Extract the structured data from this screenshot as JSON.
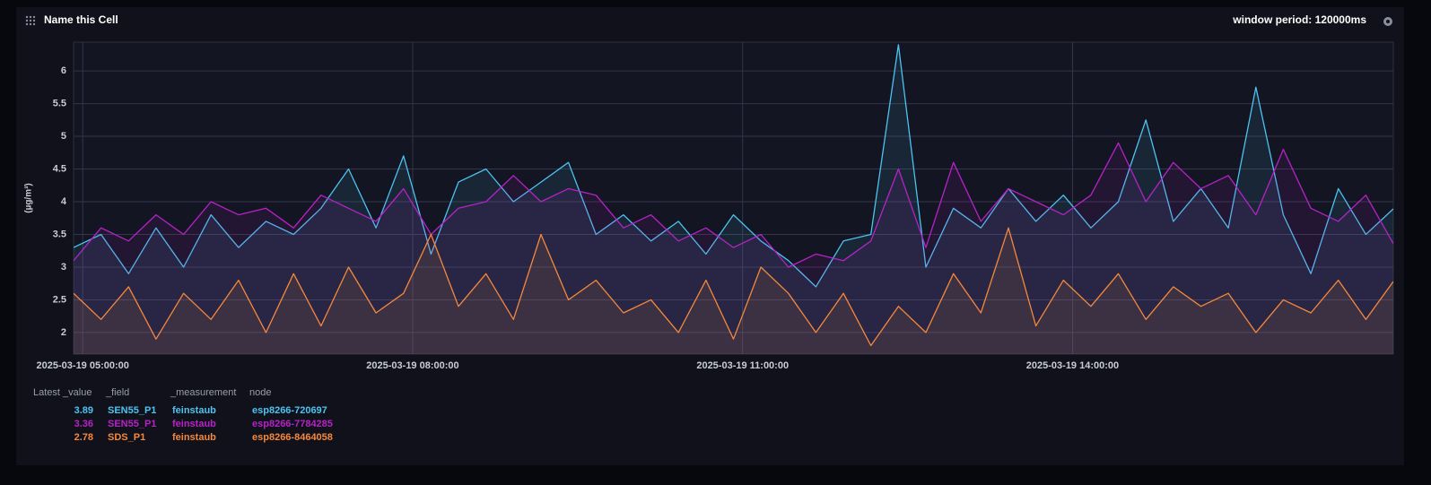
{
  "cell": {
    "title": "Name this Cell",
    "window_period": "window period: 120000ms"
  },
  "chart_data": {
    "type": "line",
    "y_label": "(µg/m³)",
    "x": [
      "2025-03-19 04:55:00",
      "2025-03-19 05:10:00",
      "2025-03-19 05:25:00",
      "2025-03-19 05:40:00",
      "2025-03-19 05:55:00",
      "2025-03-19 06:10:00",
      "2025-03-19 06:25:00",
      "2025-03-19 06:40:00",
      "2025-03-19 06:55:00",
      "2025-03-19 07:10:00",
      "2025-03-19 07:25:00",
      "2025-03-19 07:40:00",
      "2025-03-19 07:55:00",
      "2025-03-19 08:10:00",
      "2025-03-19 08:25:00",
      "2025-03-19 08:40:00",
      "2025-03-19 08:55:00",
      "2025-03-19 09:10:00",
      "2025-03-19 09:25:00",
      "2025-03-19 09:40:00",
      "2025-03-19 09:55:00",
      "2025-03-19 10:10:00",
      "2025-03-19 10:25:00",
      "2025-03-19 10:40:00",
      "2025-03-19 10:55:00",
      "2025-03-19 11:10:00",
      "2025-03-19 11:25:00",
      "2025-03-19 11:40:00",
      "2025-03-19 11:55:00",
      "2025-03-19 12:10:00",
      "2025-03-19 12:25:00",
      "2025-03-19 12:40:00",
      "2025-03-19 12:55:00",
      "2025-03-19 13:10:00",
      "2025-03-19 13:25:00",
      "2025-03-19 13:40:00",
      "2025-03-19 13:55:00",
      "2025-03-19 14:10:00",
      "2025-03-19 14:25:00",
      "2025-03-19 14:40:00",
      "2025-03-19 14:55:00",
      "2025-03-19 15:10:00",
      "2025-03-19 15:25:00",
      "2025-03-19 15:40:00",
      "2025-03-19 15:55:00",
      "2025-03-19 16:10:00",
      "2025-03-19 16:25:00",
      "2025-03-19 16:40:00",
      "2025-03-19 16:55:00"
    ],
    "xlim": [
      "2025-03-19 04:55:00",
      "2025-03-19 16:55:00"
    ],
    "xticks": [
      "2025-03-19 05:00:00",
      "2025-03-19 08:00:00",
      "2025-03-19 11:00:00",
      "2025-03-19 14:00:00"
    ],
    "ylim": [
      1.67,
      6.44
    ],
    "yticks": [
      2,
      2.5,
      3,
      3.5,
      4,
      4.5,
      5,
      5.5,
      6
    ],
    "grid": true,
    "legend_columns": [
      "Latest _value",
      "_field",
      "_measurement",
      "node"
    ],
    "series": [
      {
        "color": "#4cc3f0",
        "latest": 3.89,
        "field": "SEN55_P1",
        "measurement": "feinstaub",
        "node": "esp8266-720697",
        "values": [
          3.3,
          3.5,
          2.9,
          3.6,
          3.0,
          3.8,
          3.3,
          3.7,
          3.5,
          3.9,
          4.5,
          3.6,
          4.7,
          3.2,
          4.3,
          4.5,
          4.0,
          4.3,
          4.6,
          3.5,
          3.8,
          3.4,
          3.7,
          3.2,
          3.8,
          3.4,
          3.1,
          2.7,
          3.4,
          3.5,
          6.4,
          3.0,
          3.9,
          3.6,
          4.2,
          3.7,
          4.1,
          3.6,
          4.0,
          5.25,
          3.7,
          4.2,
          3.6,
          5.75,
          3.8,
          2.9,
          4.2,
          3.5,
          3.89
        ]
      },
      {
        "color": "#b523c6",
        "latest": 3.36,
        "field": "SEN55_P1",
        "measurement": "feinstaub",
        "node": "esp8266-7784285",
        "values": [
          3.1,
          3.6,
          3.4,
          3.8,
          3.5,
          4.0,
          3.8,
          3.9,
          3.6,
          4.1,
          3.9,
          3.7,
          4.2,
          3.5,
          3.9,
          4.0,
          4.4,
          4.0,
          4.2,
          4.1,
          3.6,
          3.8,
          3.4,
          3.6,
          3.3,
          3.5,
          3.0,
          3.2,
          3.1,
          3.4,
          4.5,
          3.3,
          4.6,
          3.7,
          4.2,
          4.0,
          3.8,
          4.1,
          4.9,
          4.0,
          4.6,
          4.2,
          4.4,
          3.8,
          4.8,
          3.9,
          3.7,
          4.1,
          3.36
        ]
      },
      {
        "color": "#f5883c",
        "latest": 2.78,
        "field": "SDS_P1",
        "measurement": "feinstaub",
        "node": "esp8266-8464058",
        "values": [
          2.6,
          2.2,
          2.7,
          1.9,
          2.6,
          2.2,
          2.8,
          2.0,
          2.9,
          2.1,
          3.0,
          2.3,
          2.6,
          3.5,
          2.4,
          2.9,
          2.2,
          3.5,
          2.5,
          2.8,
          2.3,
          2.5,
          2.0,
          2.8,
          1.9,
          3.0,
          2.6,
          2.0,
          2.6,
          1.8,
          2.4,
          2.0,
          2.9,
          2.3,
          3.6,
          2.1,
          2.8,
          2.4,
          2.9,
          2.2,
          2.7,
          2.4,
          2.6,
          2.0,
          2.5,
          2.3,
          2.8,
          2.2,
          2.78
        ]
      }
    ]
  }
}
